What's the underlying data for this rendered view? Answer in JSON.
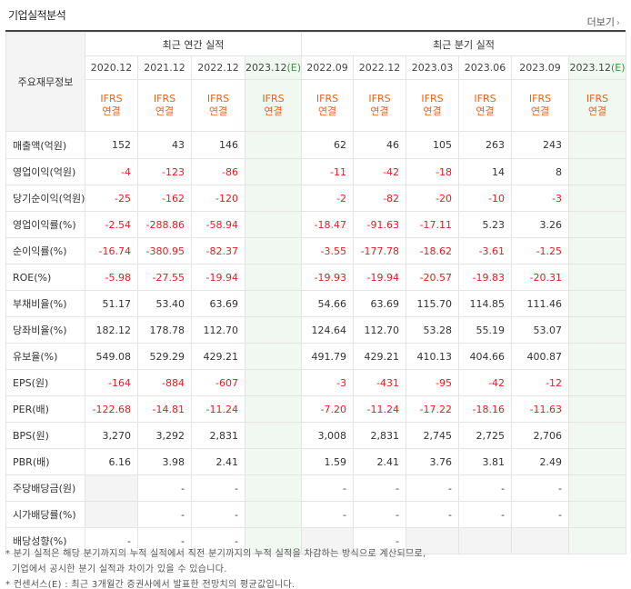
{
  "header": {
    "title": "기업실적분석",
    "more_label": "더보기",
    "more_arrow": "›"
  },
  "table": {
    "row_head": "주요재무정보",
    "annual_title": "최근 연간 실적",
    "quarter_title": "최근 분기 실적",
    "annual_periods": [
      "2020.12",
      "2021.12",
      "2022.12",
      "2023.12(E)"
    ],
    "quarter_periods": [
      "2022.09",
      "2022.12",
      "2023.03",
      "2023.06",
      "2023.09",
      "2023.12(E)"
    ],
    "basis_line1": "IFRS",
    "basis_line2": "연결",
    "rows": [
      {
        "label": "매출액(억원)",
        "values": [
          "152",
          "43",
          "146",
          "",
          "62",
          "46",
          "105",
          "263",
          "243",
          ""
        ]
      },
      {
        "label": "영업이익(억원)",
        "values": [
          "-4",
          "-123",
          "-86",
          "",
          "-11",
          "-42",
          "-18",
          "14",
          "8",
          ""
        ]
      },
      {
        "label": "당기순이익(억원)",
        "values": [
          "-25",
          "-162",
          "-120",
          "",
          "-2",
          "-82",
          "-20",
          "-10",
          "-3",
          ""
        ]
      },
      {
        "label": "영업이익률(%)",
        "values": [
          "-2.54",
          "-288.86",
          "-58.94",
          "",
          "-18.47",
          "-91.63",
          "-17.11",
          "5.23",
          "3.26",
          ""
        ]
      },
      {
        "label": "순이익률(%)",
        "values": [
          "-16.74",
          "-380.95",
          "-82.37",
          "",
          "-3.55",
          "-177.78",
          "-18.62",
          "-3.61",
          "-1.25",
          ""
        ]
      },
      {
        "label": "ROE(%)",
        "values": [
          "-5.98",
          "-27.55",
          "-19.94",
          "",
          "-19.93",
          "-19.94",
          "-20.57",
          "-19.83",
          "-20.31",
          ""
        ]
      },
      {
        "label": "부채비율(%)",
        "values": [
          "51.17",
          "53.40",
          "63.69",
          "",
          "54.66",
          "63.69",
          "115.70",
          "114.85",
          "111.46",
          ""
        ]
      },
      {
        "label": "당좌비율(%)",
        "values": [
          "182.12",
          "178.78",
          "112.70",
          "",
          "124.64",
          "112.70",
          "53.28",
          "55.19",
          "53.07",
          ""
        ]
      },
      {
        "label": "유보율(%)",
        "values": [
          "549.08",
          "529.29",
          "429.21",
          "",
          "491.79",
          "429.21",
          "410.13",
          "404.66",
          "400.87",
          ""
        ]
      },
      {
        "label": "EPS(원)",
        "values": [
          "-164",
          "-884",
          "-607",
          "",
          "-3",
          "-431",
          "-95",
          "-42",
          "-12",
          ""
        ]
      },
      {
        "label": "PER(배)",
        "values": [
          "-122.68",
          "-14.81",
          "-11.24",
          "",
          "-7.20",
          "-11.24",
          "-17.22",
          "-18.16",
          "-11.63",
          ""
        ]
      },
      {
        "label": "BPS(원)",
        "values": [
          "3,270",
          "3,292",
          "2,831",
          "",
          "3,008",
          "2,831",
          "2,745",
          "2,725",
          "2,706",
          ""
        ]
      },
      {
        "label": "PBR(배)",
        "values": [
          "6.16",
          "3.98",
          "2.41",
          "",
          "1.59",
          "2.41",
          "3.76",
          "3.81",
          "2.49",
          ""
        ]
      },
      {
        "label": "주당배당금(원)",
        "values": [
          "",
          "-",
          "-",
          "",
          "-",
          "-",
          "-",
          "-",
          "-",
          ""
        ]
      },
      {
        "label": "시가배당률(%)",
        "values": [
          "",
          "-",
          "-",
          "",
          "-",
          "-",
          "-",
          "-",
          "-",
          ""
        ]
      },
      {
        "label": "배당성향(%)",
        "values": [
          "-",
          "-",
          "-",
          "",
          "",
          "-",
          "",
          "",
          "",
          ""
        ]
      }
    ]
  },
  "notes": {
    "line1": "* 분기 실적은 해당 분기까지의 누적 실적에서 직전 분기까지의 누적 실적을 차감하는 방식으로 계산되므로,",
    "line2": "  기업에서 공시한 분기 실적과 차이가 있을 수 있습니다.",
    "line3": "* 컨센서스(E) : 최근 3개월간 증권사에서 발표한 전망치의 평균값입니다."
  }
}
